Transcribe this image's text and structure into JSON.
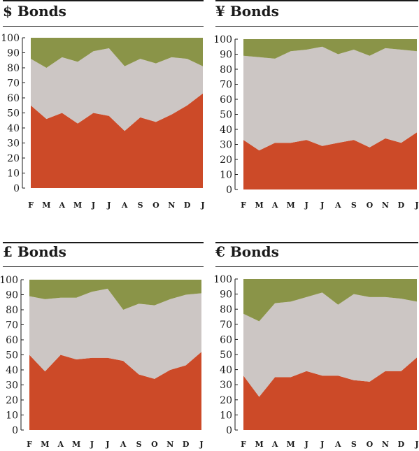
{
  "chart_data": [
    {
      "type": "area",
      "title": "$ Bonds",
      "categories": [
        "F",
        "M",
        "A",
        "M",
        "J",
        "J",
        "A",
        "S",
        "O",
        "N",
        "D",
        "J"
      ],
      "ylim": [
        0,
        100
      ],
      "yticks": [
        0,
        10,
        20,
        30,
        40,
        50,
        60,
        70,
        80,
        90,
        100
      ],
      "stacked_cumulative": true,
      "series": [
        {
          "values": [
            55,
            46,
            50,
            43,
            50,
            48,
            38,
            47,
            44,
            49,
            55,
            63
          ],
          "color": "#cc4a28"
        },
        {
          "values": [
            86,
            80,
            87,
            84,
            91,
            93,
            81,
            86,
            83,
            87,
            86,
            81
          ],
          "color": "#ccc6c4"
        },
        {
          "values": [
            100,
            100,
            100,
            100,
            100,
            100,
            100,
            100,
            100,
            100,
            100,
            100
          ],
          "color": "#8a9448"
        }
      ]
    },
    {
      "type": "area",
      "title": "¥ Bonds",
      "categories": [
        "F",
        "M",
        "A",
        "M",
        "J",
        "J",
        "A",
        "S",
        "O",
        "N",
        "D",
        "J"
      ],
      "ylim": [
        0,
        100
      ],
      "yticks": [
        0,
        10,
        20,
        30,
        40,
        50,
        60,
        70,
        80,
        90,
        100
      ],
      "stacked_cumulative": true,
      "series": [
        {
          "values": [
            33,
            26,
            31,
            31,
            33,
            29,
            31,
            33,
            28,
            34,
            31,
            38
          ],
          "color": "#cc4a28"
        },
        {
          "values": [
            89,
            88,
            87,
            92,
            93,
            95,
            90,
            93,
            89,
            94,
            93,
            92
          ],
          "color": "#ccc6c4"
        },
        {
          "values": [
            100,
            100,
            100,
            100,
            100,
            100,
            100,
            100,
            100,
            100,
            100,
            100
          ],
          "color": "#8a9448"
        }
      ]
    },
    {
      "type": "area",
      "title": "£ Bonds",
      "categories": [
        "F",
        "M",
        "A",
        "M",
        "J",
        "J",
        "A",
        "S",
        "O",
        "N",
        "D",
        "J"
      ],
      "ylim": [
        0,
        100
      ],
      "yticks": [
        0,
        10,
        20,
        30,
        40,
        50,
        60,
        70,
        80,
        90,
        100
      ],
      "stacked_cumulative": true,
      "series": [
        {
          "values": [
            50,
            39,
            50,
            47,
            48,
            48,
            46,
            37,
            34,
            40,
            43,
            52
          ],
          "color": "#cc4a28"
        },
        {
          "values": [
            89,
            87,
            88,
            88,
            92,
            94,
            80,
            84,
            83,
            87,
            90,
            91
          ],
          "color": "#ccc6c4"
        },
        {
          "values": [
            100,
            100,
            100,
            100,
            100,
            100,
            100,
            100,
            100,
            100,
            100,
            100
          ],
          "color": "#8a9448"
        }
      ]
    },
    {
      "type": "area",
      "title": "€ Bonds",
      "categories": [
        "F",
        "M",
        "A",
        "M",
        "J",
        "J",
        "A",
        "S",
        "O",
        "N",
        "D",
        "J"
      ],
      "ylim": [
        0,
        100
      ],
      "yticks": [
        0,
        10,
        20,
        30,
        40,
        50,
        60,
        70,
        80,
        90,
        100
      ],
      "stacked_cumulative": true,
      "series": [
        {
          "values": [
            36,
            22,
            35,
            35,
            39,
            36,
            36,
            33,
            32,
            39,
            39,
            48
          ],
          "color": "#cc4a28"
        },
        {
          "values": [
            77,
            72,
            84,
            85,
            88,
            91,
            83,
            90,
            88,
            88,
            87,
            85
          ],
          "color": "#ccc6c4"
        },
        {
          "values": [
            100,
            100,
            100,
            100,
            100,
            100,
            100,
            100,
            100,
            100,
            100,
            100
          ],
          "color": "#8a9448"
        }
      ]
    }
  ]
}
